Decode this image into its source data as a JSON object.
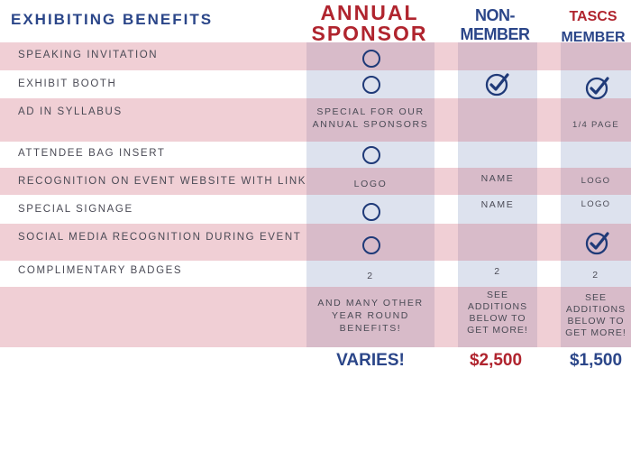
{
  "header": {
    "title": "EXHIBITING BENEFITS",
    "annual_line1": "ANNUAL",
    "annual_line2": "SPONSOR",
    "non_line1": "NON-",
    "non_line2": "MEMBER",
    "tascs_line1": "TASCS",
    "tascs_line2": "MEMBER"
  },
  "rows": [
    {
      "label": "SPEAKING INVITATION"
    },
    {
      "label": "EXHIBIT BOOTH"
    },
    {
      "label": "AD IN SYLLABUS"
    },
    {
      "label": "ATTENDEE BAG INSERT"
    },
    {
      "label": "RECOGNITION ON EVENT WEBSITE WITH LINK"
    },
    {
      "label": "SPECIAL SIGNAGE"
    },
    {
      "label": "SOCIAL MEDIA RECOGNITION DURING EVENT"
    },
    {
      "label": "COMPLIMENTARY BADGES"
    }
  ],
  "cells": {
    "syllabus_annual_1": "SPECIAL FOR OUR",
    "syllabus_annual_2": "ANNUAL SPONSORS",
    "syllabus_tascs": "1/4 PAGE",
    "website_annual": "LOGO",
    "website_non": "NAME",
    "website_tascs": "LOGO",
    "signage_non": "NAME",
    "signage_tascs": "LOGO",
    "badges_annual": "2",
    "badges_non": "2",
    "badges_tascs": "2",
    "extra_annual": [
      "AND MANY OTHER",
      "YEAR ROUND",
      "BENEFITS!"
    ],
    "extra_non": [
      "SEE",
      "ADDITIONS",
      "BELOW TO",
      "GET MORE!"
    ],
    "extra_tascs": [
      "SEE",
      "ADDITIONS",
      "BELOW TO",
      "GET MORE!"
    ]
  },
  "icons": {
    "open_circle": "circle-outline-icon",
    "checked_circle": "checkmark-circle-icon"
  },
  "prices": {
    "annual": "VARIES!",
    "non": "$2,500",
    "tascs": "$1,500"
  },
  "colors": {
    "navy": "#2b4689",
    "red": "#b0242e",
    "pink_row": "#ebc5cc",
    "blue_column": "#dde2ee"
  }
}
